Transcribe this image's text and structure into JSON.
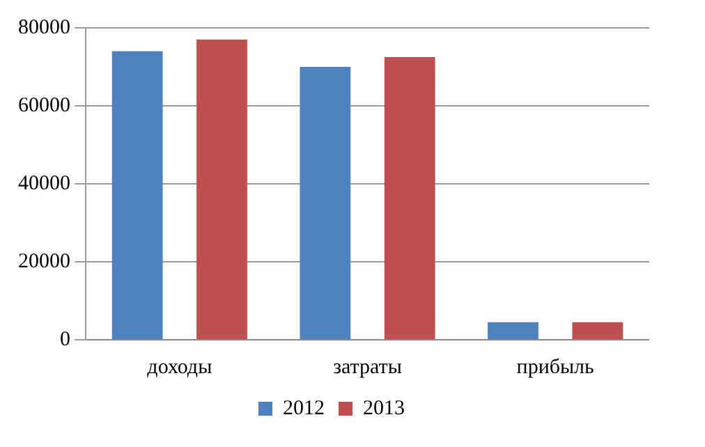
{
  "chart_data": {
    "type": "bar",
    "categories": [
      "доходы",
      "затраты",
      "прибыль"
    ],
    "series": [
      {
        "name": "2012",
        "color": "#4f81bd",
        "values": [
          74000,
          70000,
          4500
        ]
      },
      {
        "name": "2013",
        "color": "#c0504d",
        "values": [
          77000,
          72500,
          4500
        ]
      }
    ],
    "ylim": [
      0,
      80000
    ],
    "yticks": [
      0,
      20000,
      40000,
      60000,
      80000
    ],
    "grid": "y",
    "legend": "bottom"
  }
}
